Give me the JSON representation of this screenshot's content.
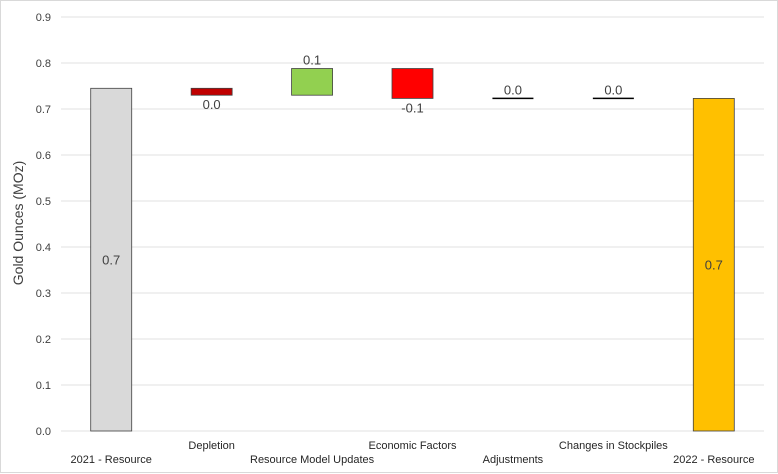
{
  "chart_data": {
    "type": "waterfall",
    "title": "",
    "xlabel": "",
    "ylabel": "Gold Ounces (MOz)",
    "ylim": [
      0,
      0.9
    ],
    "ytick_step": 0.1,
    "ytick_labels": [
      "0.0",
      "0.1",
      "0.2",
      "0.3",
      "0.4",
      "0.5",
      "0.6",
      "0.7",
      "0.8",
      "0.9"
    ],
    "grid": true,
    "categories": [
      "2021 - Resource",
      "Depletion",
      "Resource Model Updates",
      "Economic Factors",
      "Adjustments",
      "Changes in Stockpiles",
      "2022 - Resource"
    ],
    "bars": [
      {
        "kind": "total",
        "start": 0,
        "end": 0.745,
        "label": "0.7",
        "color": "#d9d9d9"
      },
      {
        "kind": "delta",
        "start": 0.745,
        "end": 0.73,
        "label": "0.0",
        "color": "#c00000"
      },
      {
        "kind": "delta",
        "start": 0.73,
        "end": 0.788,
        "label": "0.1",
        "color": "#92d050"
      },
      {
        "kind": "delta",
        "start": 0.788,
        "end": 0.723,
        "label": "-0.1",
        "color": "#ff0000"
      },
      {
        "kind": "delta",
        "start": 0.723,
        "end": 0.723,
        "label": "0.0",
        "color": "#000000"
      },
      {
        "kind": "delta",
        "start": 0.723,
        "end": 0.723,
        "label": "0.0",
        "color": "#000000"
      },
      {
        "kind": "total",
        "start": 0,
        "end": 0.723,
        "label": "0.7",
        "color": "#ffc000"
      }
    ]
  }
}
